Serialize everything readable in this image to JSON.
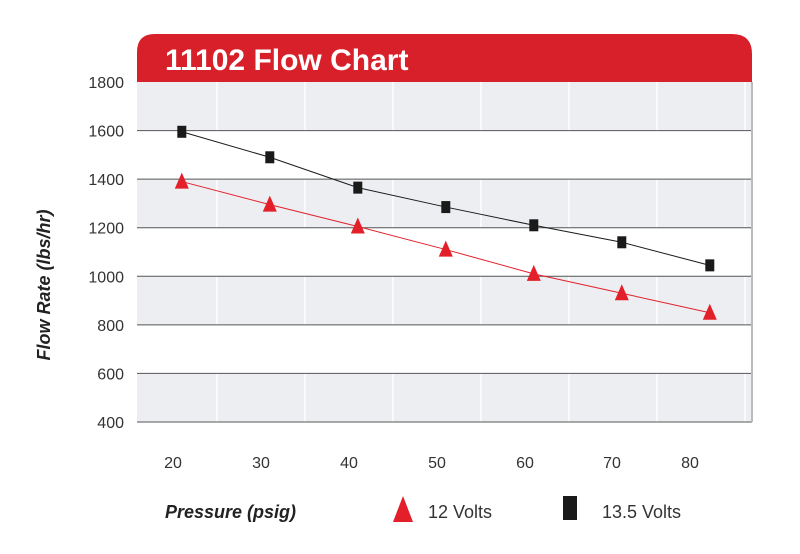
{
  "chart_data": {
    "type": "line",
    "title": "11102 Flow Chart",
    "xlabel": "Pressure (psig)",
    "ylabel": "Flow Rate (lbs/hr)",
    "x_ticks": [
      20,
      30,
      40,
      50,
      60,
      70,
      80
    ],
    "y_ticks": [
      400,
      600,
      800,
      1000,
      1200,
      1400,
      1600,
      1800
    ],
    "xlim": [
      16,
      85
    ],
    "ylim": [
      400,
      1800
    ],
    "grid": true,
    "legend_placement": "bottom",
    "series": [
      {
        "name": "12 Volts",
        "marker": "triangle",
        "color": "#e3202a",
        "x": [
          21,
          31,
          41,
          51,
          61,
          71,
          81
        ],
        "y": [
          1390,
          1295,
          1205,
          1110,
          1010,
          930,
          850
        ]
      },
      {
        "name": "13.5 Volts",
        "marker": "square",
        "color": "#1a1a1a",
        "x": [
          21,
          31,
          41,
          51,
          61,
          71,
          81
        ],
        "y": [
          1595,
          1490,
          1365,
          1285,
          1210,
          1140,
          1045
        ]
      }
    ],
    "colors": {
      "header": "#d7202a",
      "band": "#eceef2",
      "gridline": "#555555"
    }
  }
}
